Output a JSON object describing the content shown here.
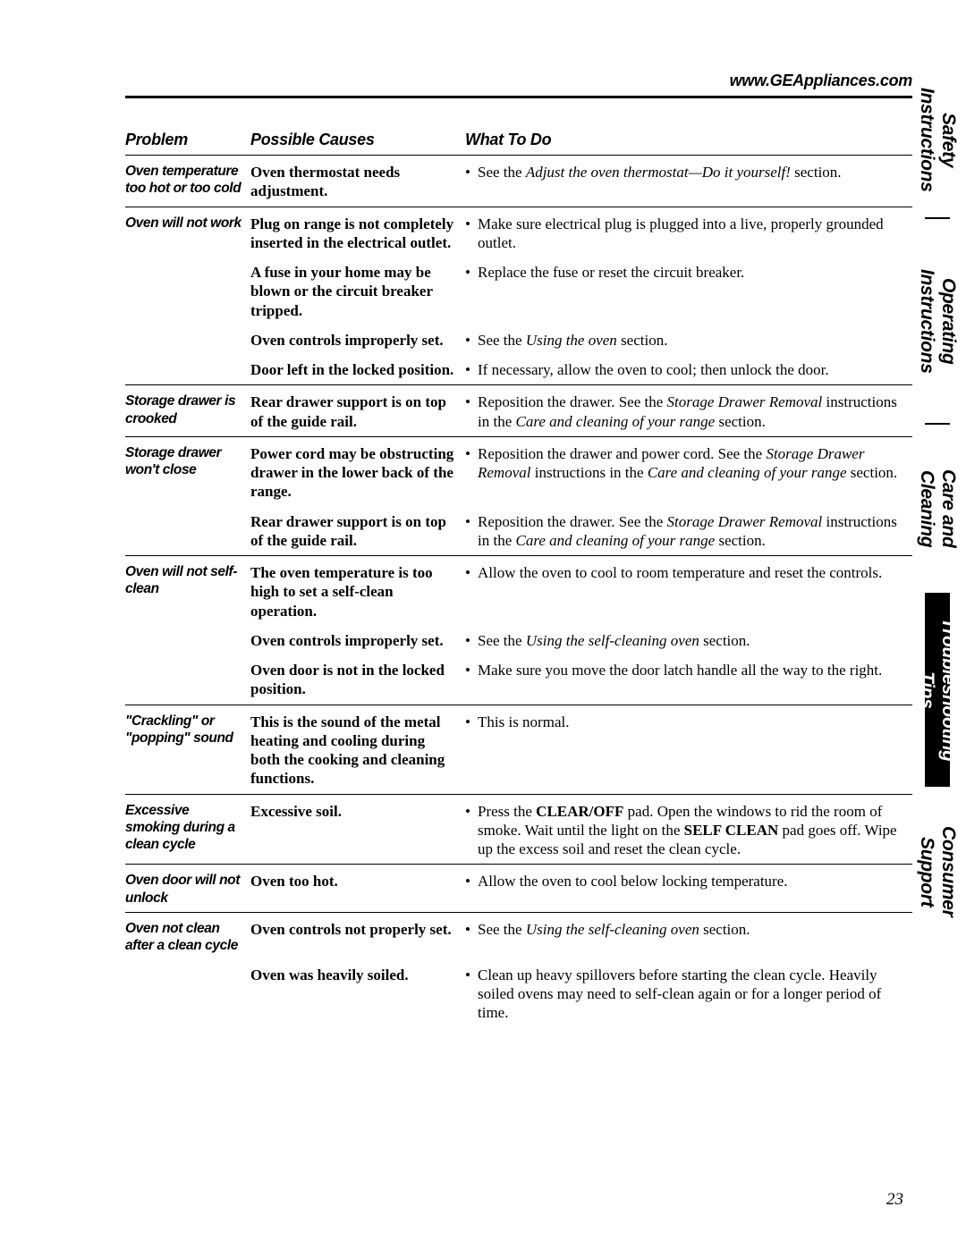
{
  "url": "www.GEAppliances.com",
  "page_number": "23",
  "headers": {
    "problem": "Problem",
    "cause": "Possible Causes",
    "todo": "What To Do"
  },
  "tabs": [
    {
      "label": "Safety Instructions",
      "active": false
    },
    {
      "label": "Operating Instructions",
      "active": false
    },
    {
      "label": "Care and Cleaning",
      "active": false
    },
    {
      "label": "Troubleshooting Tips",
      "active": true
    },
    {
      "label": "Consumer Support",
      "active": false
    }
  ],
  "rows": [
    {
      "problem": "Oven temperature too hot or too cold",
      "cause": "Oven thermostat needs adjustment.",
      "todo_pre": "See the ",
      "todo_ital": "Adjust the oven thermostat—Do it yourself!",
      "todo_post": " section."
    },
    {
      "problem": "Oven will not work",
      "cause": "Plug on range is not completely inserted in the electrical outlet.",
      "todo_pre": "Make sure electrical plug is plugged into a live, properly grounded outlet.",
      "todo_ital": "",
      "todo_post": ""
    },
    {
      "problem": "",
      "cause": "A fuse in your home may be blown or the circuit breaker tripped.",
      "todo_pre": "Replace the fuse or reset the circuit breaker.",
      "todo_ital": "",
      "todo_post": ""
    },
    {
      "problem": "",
      "cause": "Oven controls improperly set.",
      "todo_pre": "See the ",
      "todo_ital": "Using the oven",
      "todo_post": " section."
    },
    {
      "problem": "",
      "cause": "Door left in the locked position.",
      "todo_pre": "If necessary, allow the oven to cool; then unlock the door.",
      "todo_ital": "",
      "todo_post": ""
    },
    {
      "problem": "Storage drawer is crooked",
      "cause": "Rear drawer support is on top of the guide rail.",
      "todo_pre": "Reposition the drawer. See the ",
      "todo_ital": "Storage Drawer Removal",
      "todo_mid": " instructions in the ",
      "todo_ital2": "Care and cleaning of your range",
      "todo_post": " section."
    },
    {
      "problem": "Storage drawer won't close",
      "cause": "Power cord may be obstructing drawer in the lower back of the range.",
      "todo_pre": "Reposition the drawer and power cord. See the ",
      "todo_ital": "Storage Drawer Removal",
      "todo_mid": " instructions in the ",
      "todo_ital2": "Care and cleaning of your range",
      "todo_post": " section."
    },
    {
      "problem": "",
      "cause": "Rear drawer support is on top of the guide rail.",
      "todo_pre": "Reposition the drawer. See the ",
      "todo_ital": "Storage Drawer Removal",
      "todo_mid": " instructions in the ",
      "todo_ital2": "Care and cleaning of your range",
      "todo_post": " section."
    },
    {
      "problem": "Oven will not self-clean",
      "cause": "The oven temperature is too high to set a self-clean operation.",
      "todo_pre": "Allow the oven to cool to room temperature and reset the controls.",
      "todo_ital": "",
      "todo_post": ""
    },
    {
      "problem": "",
      "cause": "Oven controls improperly set.",
      "todo_pre": "See the ",
      "todo_ital": "Using the self-cleaning oven",
      "todo_post": " section."
    },
    {
      "problem": "",
      "cause": "Oven door is not in the locked position.",
      "todo_pre": "Make sure you move the door latch handle all the way to the right.",
      "todo_ital": "",
      "todo_post": ""
    },
    {
      "problem": "\"Crackling\" or \"popping\" sound",
      "cause": "This is the sound of the metal heating and cooling during both the cooking and cleaning functions.",
      "todo_pre": "This is normal.",
      "todo_ital": "",
      "todo_post": ""
    },
    {
      "problem": "Excessive smoking during a clean cycle",
      "cause": "Excessive soil.",
      "todo_pre": "Press the ",
      "todo_bold": "CLEAR/OFF",
      "todo_mid": " pad. Open the windows to rid the room of smoke. Wait until the light on the ",
      "todo_bold2": "SELF CLEAN",
      "todo_post": " pad goes off. Wipe up the excess soil and reset the clean cycle."
    },
    {
      "problem": "Oven door will not unlock",
      "cause": "Oven too hot.",
      "todo_pre": "Allow the oven to cool below locking temperature.",
      "todo_ital": "",
      "todo_post": ""
    },
    {
      "problem": "Oven not clean after a clean cycle",
      "cause": "Oven controls not properly set.",
      "todo_pre": "See the ",
      "todo_ital": "Using the self-cleaning oven",
      "todo_post": " section."
    },
    {
      "problem": "",
      "cause": "Oven was heavily soiled.",
      "todo_pre": "Clean up heavy spillovers before starting the clean cycle. Heavily soiled ovens may need to self-clean again or for a longer period of time.",
      "todo_ital": "",
      "todo_post": ""
    }
  ],
  "dividers_after": [
    0,
    4,
    5,
    7,
    10,
    11,
    12,
    13
  ]
}
